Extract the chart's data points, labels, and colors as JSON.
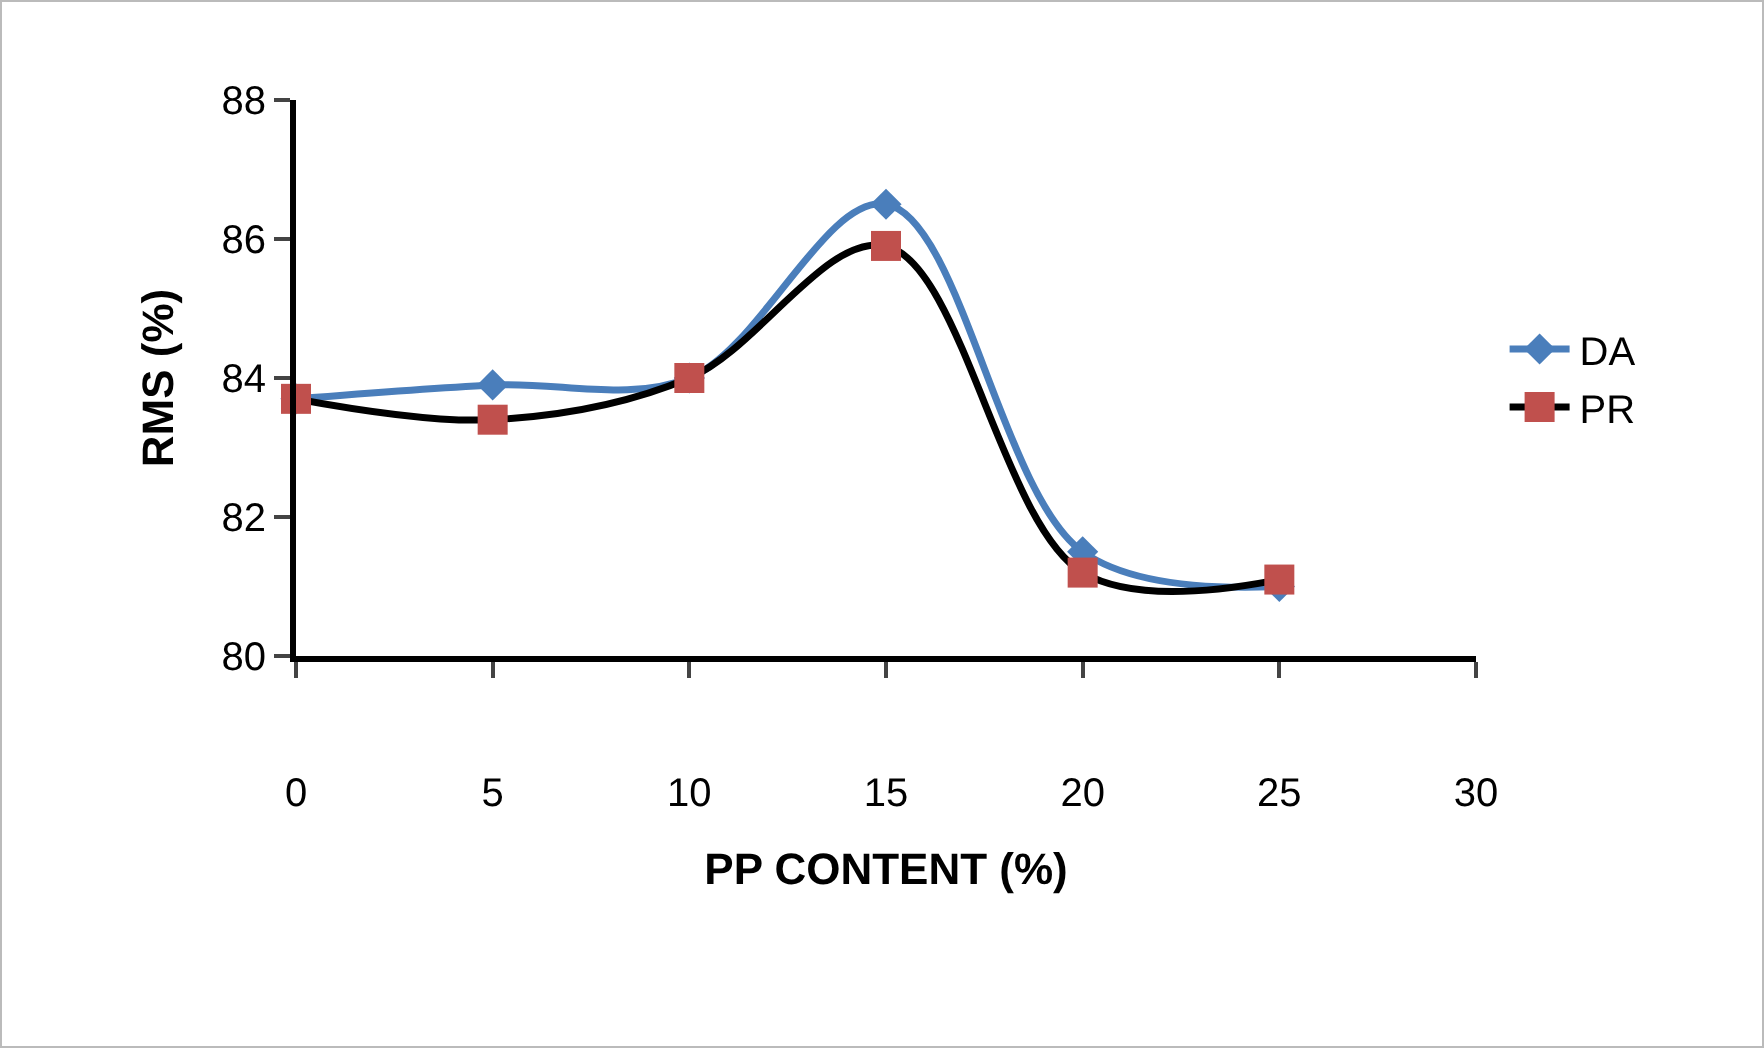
{
  "chart_data": {
    "type": "line",
    "xlabel": "PP CONTENT (%)",
    "ylabel": "RMS (%)",
    "x": [
      0,
      5,
      10,
      15,
      20,
      25
    ],
    "series": [
      {
        "name": "DA",
        "color": "#4a7ebb",
        "marker": "diamond",
        "values": [
          83.7,
          83.9,
          84.0,
          86.5,
          81.5,
          81.0
        ]
      },
      {
        "name": "PR",
        "color": "#000000",
        "marker": "square",
        "values": [
          83.7,
          83.4,
          84.0,
          85.9,
          81.2,
          81.1
        ]
      }
    ],
    "xlim": [
      0,
      30
    ],
    "xticks": [
      0,
      5,
      10,
      15,
      20,
      25,
      30
    ],
    "ylim": [
      80,
      88
    ],
    "yticks": [
      80,
      82,
      84,
      86,
      88
    ],
    "grid": false,
    "legend": "right",
    "line_style": "solid"
  }
}
